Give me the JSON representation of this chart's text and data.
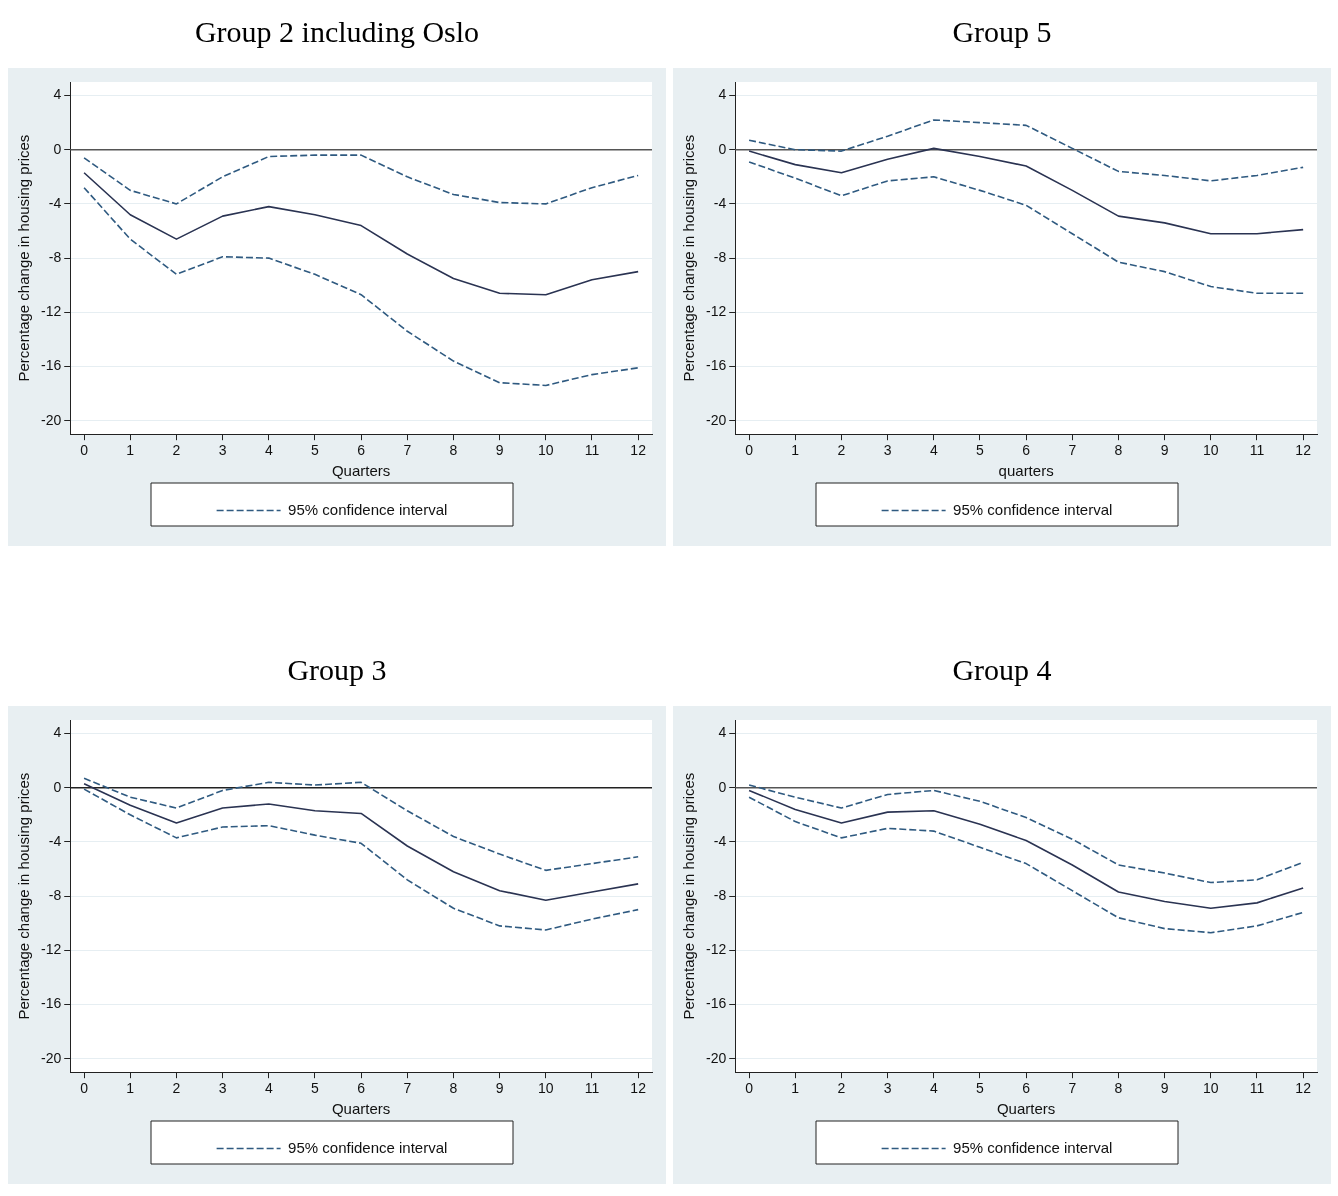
{
  "chart_data": [
    {
      "type": "line",
      "title": "Group 2 including Oslo",
      "xlabel": "Quarters",
      "ylabel": "Percentage change in housing prices",
      "x": [
        0,
        1,
        2,
        3,
        4,
        5,
        6,
        7,
        8,
        9,
        10,
        11,
        12
      ],
      "xlim": [
        -0.3,
        12.3
      ],
      "xticks": [
        0,
        1,
        2,
        3,
        4,
        5,
        6,
        7,
        8,
        9,
        10,
        11,
        12
      ],
      "ylim": [
        -21,
        5
      ],
      "yticks": [
        -20,
        -16,
        -12,
        -8,
        -4,
        0,
        4
      ],
      "grid": "y",
      "legend": "bottom",
      "ref_lines": [
        {
          "axis": "y",
          "value": 0,
          "color": "#555555"
        }
      ],
      "series": [
        {
          "color": "#2a3352",
          "line_style": "solid",
          "values": [
            -1.7,
            -4.8,
            -6.6,
            -4.9,
            -4.2,
            -4.8,
            -5.6,
            -7.7,
            -9.5,
            -10.6,
            -10.7,
            -9.6,
            -9.0
          ]
        },
        {
          "name": "95% confidence interval",
          "color": "#2f5a80",
          "line_style": "dashed",
          "values": [
            -0.6,
            -3.0,
            -4.0,
            -2.0,
            -0.5,
            -0.4,
            -0.4,
            -2.0,
            -3.3,
            -3.9,
            -4.0,
            -2.8,
            -1.9
          ]
        },
        {
          "color": "#2f5a80",
          "line_style": "dashed",
          "values": [
            -2.8,
            -6.6,
            -9.2,
            -7.9,
            -8.0,
            -9.2,
            -10.7,
            -13.4,
            -15.6,
            -17.2,
            -17.4,
            -16.6,
            -16.1
          ]
        }
      ]
    },
    {
      "type": "line",
      "title": "Group 5",
      "xlabel": "quarters",
      "ylabel": "Percentage change in housing prices",
      "x": [
        0,
        1,
        2,
        3,
        4,
        5,
        6,
        7,
        8,
        9,
        10,
        11,
        12
      ],
      "xlim": [
        -0.3,
        12.3
      ],
      "xticks": [
        0,
        1,
        2,
        3,
        4,
        5,
        6,
        7,
        8,
        9,
        10,
        11,
        12
      ],
      "ylim": [
        -21,
        5
      ],
      "yticks": [
        -20,
        -16,
        -12,
        -8,
        -4,
        0,
        4
      ],
      "grid": "y",
      "legend": "bottom",
      "ref_lines": [
        {
          "axis": "y",
          "value": 0,
          "color": "#555555"
        }
      ],
      "series": [
        {
          "color": "#2a3352",
          "line_style": "solid",
          "values": [
            -0.1,
            -1.1,
            -1.7,
            -0.7,
            0.1,
            -0.5,
            -1.2,
            -3.0,
            -4.9,
            -5.4,
            -6.2,
            -6.2,
            -5.9
          ]
        },
        {
          "name": "95% confidence interval",
          "color": "#2f5a80",
          "line_style": "dashed",
          "values": [
            0.7,
            0.0,
            -0.1,
            1.0,
            2.2,
            2.0,
            1.8,
            0.1,
            -1.6,
            -1.9,
            -2.3,
            -1.9,
            -1.3
          ]
        },
        {
          "color": "#2f5a80",
          "line_style": "dashed",
          "values": [
            -0.9,
            -2.1,
            -3.4,
            -2.3,
            -2.0,
            -3.0,
            -4.1,
            -6.2,
            -8.3,
            -9.0,
            -10.1,
            -10.6,
            -10.6
          ]
        }
      ]
    },
    {
      "type": "line",
      "title": "Group 3",
      "xlabel": "Quarters",
      "ylabel": "Percentage change in housing prices",
      "x": [
        0,
        1,
        2,
        3,
        4,
        5,
        6,
        7,
        8,
        9,
        10,
        11,
        12
      ],
      "xlim": [
        -0.3,
        12.3
      ],
      "xticks": [
        0,
        1,
        2,
        3,
        4,
        5,
        6,
        7,
        8,
        9,
        10,
        11,
        12
      ],
      "ylim": [
        -21,
        5
      ],
      "yticks": [
        -20,
        -16,
        -12,
        -8,
        -4,
        0,
        4
      ],
      "grid": "y",
      "legend": "bottom",
      "ref_lines": [
        {
          "axis": "y",
          "value": 0,
          "color": "#222222"
        }
      ],
      "series": [
        {
          "color": "#2a3352",
          "line_style": "solid",
          "values": [
            0.3,
            -1.3,
            -2.6,
            -1.5,
            -1.2,
            -1.7,
            -1.9,
            -4.3,
            -6.2,
            -7.6,
            -8.3,
            -7.7,
            -7.1
          ]
        },
        {
          "name": "95% confidence interval",
          "color": "#2f5a80",
          "line_style": "dashed",
          "values": [
            0.7,
            -0.7,
            -1.5,
            -0.2,
            0.4,
            0.2,
            0.4,
            -1.7,
            -3.6,
            -4.9,
            -6.1,
            -5.6,
            -5.1
          ]
        },
        {
          "color": "#2f5a80",
          "line_style": "dashed",
          "values": [
            -0.1,
            -2.0,
            -3.7,
            -2.9,
            -2.8,
            -3.5,
            -4.1,
            -6.8,
            -8.9,
            -10.2,
            -10.5,
            -9.7,
            -9.0
          ]
        }
      ]
    },
    {
      "type": "line",
      "title": "Group 4",
      "xlabel": "Quarters",
      "ylabel": "Percentage change in housing prices",
      "x": [
        0,
        1,
        2,
        3,
        4,
        5,
        6,
        7,
        8,
        9,
        10,
        11,
        12
      ],
      "xlim": [
        -0.3,
        12.3
      ],
      "xticks": [
        0,
        1,
        2,
        3,
        4,
        5,
        6,
        7,
        8,
        9,
        10,
        11,
        12
      ],
      "ylim": [
        -21,
        5
      ],
      "yticks": [
        -20,
        -16,
        -12,
        -8,
        -4,
        0,
        4
      ],
      "grid": "y",
      "legend": "bottom",
      "ref_lines": [
        {
          "axis": "y",
          "value": 0,
          "color": "#555555"
        }
      ],
      "series": [
        {
          "color": "#2a3352",
          "line_style": "solid",
          "values": [
            -0.2,
            -1.6,
            -2.6,
            -1.8,
            -1.7,
            -2.7,
            -3.9,
            -5.7,
            -7.7,
            -8.4,
            -8.9,
            -8.5,
            -7.4
          ]
        },
        {
          "name": "95% confidence interval",
          "color": "#2f5a80",
          "line_style": "dashed",
          "values": [
            0.2,
            -0.7,
            -1.5,
            -0.5,
            -0.2,
            -1.0,
            -2.2,
            -3.8,
            -5.7,
            -6.3,
            -7.0,
            -6.8,
            -5.5
          ]
        },
        {
          "color": "#2f5a80",
          "line_style": "dashed",
          "values": [
            -0.7,
            -2.5,
            -3.7,
            -3.0,
            -3.2,
            -4.4,
            -5.6,
            -7.6,
            -9.6,
            -10.4,
            -10.7,
            -10.2,
            -9.2
          ]
        }
      ]
    }
  ]
}
